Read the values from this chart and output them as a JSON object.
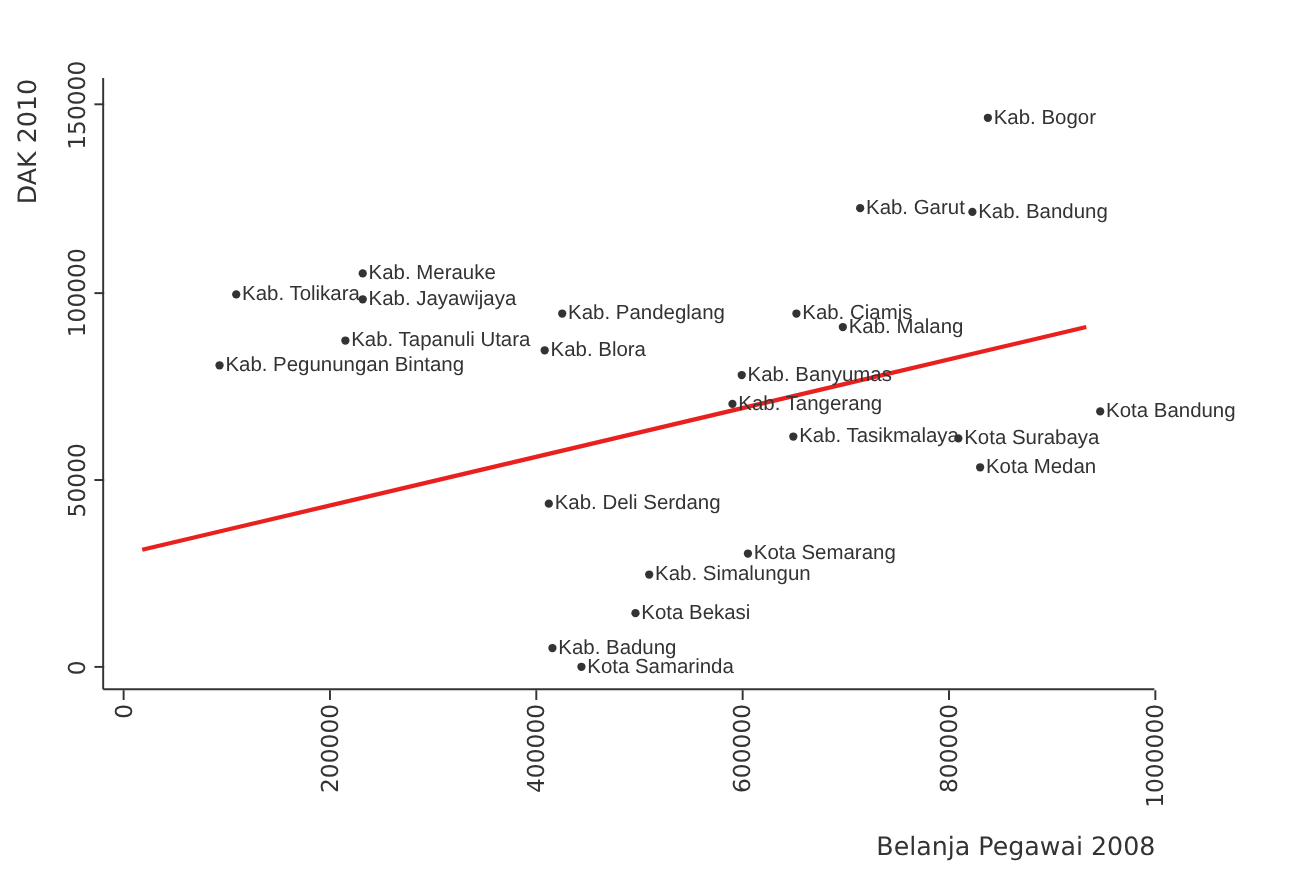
{
  "chart_data": {
    "type": "scatter",
    "xlabel": "Belanja Pegawai 2008",
    "ylabel": "DAK 2010",
    "xlim": [
      -19000,
      1000000
    ],
    "xticks": [
      0,
      200000,
      400000,
      600000,
      800000,
      1000000
    ],
    "ylim": [
      -6000,
      157000
    ],
    "yticks": [
      0,
      50000,
      100000,
      150000
    ],
    "grid": false,
    "series": [
      {
        "marker": "circle",
        "color": "#333333",
        "x": [
          838600,
          714800,
          823600,
          947500,
          810000,
          831100,
          650000,
          591000,
          698000,
          653000,
          600000,
          426000,
          409000,
          232600,
          110000,
          232600,
          215800,
          93800,
          413000,
          606000,
          510300,
          497000,
          416500,
          444600
        ],
        "values": [
          146400,
          122300,
          121300,
          68100,
          60900,
          53200,
          61400,
          70100,
          90600,
          94200,
          77800,
          94200,
          84400,
          104900,
          99300,
          98000,
          87000,
          80400,
          43500,
          30200,
          24600,
          14300,
          5000,
          0
        ],
        "value_labels": [
          "Kab. Bogor",
          "Kab. Garut",
          "Kab. Bandung",
          "Kota Bandung",
          "Kota Surabaya",
          "Kota Medan",
          "Kab. Tasikmalaya",
          "Kab. Tangerang",
          "Kab. Malang",
          "Kab. Ciamis",
          "Kab. Banyumas",
          "Kab. Pandeglang",
          "Kab. Blora",
          "Kab. Merauke",
          "Kab. Tolikara",
          "Kab. Jayawijaya",
          "Kab. Tapanuli Utara",
          "Kab. Pegunungan Bintang",
          "Kab. Deli Serdang",
          "Kota Semarang",
          "Kab. Simalungun",
          "Kota Bekasi",
          "Kab. Badung",
          "Kota Samarinda"
        ]
      },
      {
        "type": "line",
        "color": "#e8211f",
        "line_style": "solid",
        "x": [
          18800,
          934000
        ],
        "values": [
          31200,
          90600
        ]
      }
    ]
  }
}
